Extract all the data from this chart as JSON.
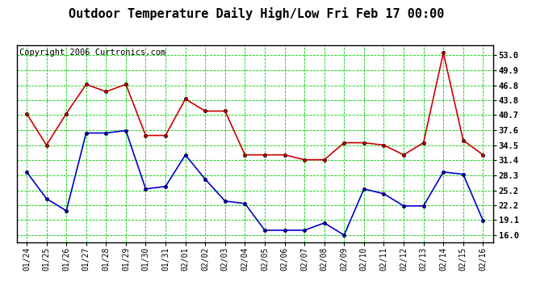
{
  "title": "Outdoor Temperature Daily High/Low Fri Feb 17 00:00",
  "copyright": "Copyright 2006 Curtronics.com",
  "x_labels": [
    "01/24",
    "01/25",
    "01/26",
    "01/27",
    "01/28",
    "01/29",
    "01/30",
    "01/31",
    "02/01",
    "02/02",
    "02/03",
    "02/04",
    "02/05",
    "02/06",
    "02/07",
    "02/08",
    "02/09",
    "02/10",
    "02/11",
    "02/12",
    "02/13",
    "02/14",
    "02/15",
    "02/16"
  ],
  "high_temps": [
    41.0,
    34.5,
    41.0,
    47.0,
    45.5,
    47.0,
    36.5,
    36.5,
    44.0,
    41.5,
    41.5,
    32.5,
    32.5,
    32.5,
    31.5,
    31.5,
    35.0,
    35.0,
    34.5,
    32.5,
    35.0,
    53.5,
    35.5,
    32.5
  ],
  "low_temps": [
    29.0,
    23.5,
    21.0,
    37.0,
    37.0,
    37.5,
    25.5,
    26.0,
    32.5,
    27.5,
    23.0,
    22.5,
    17.0,
    17.0,
    17.0,
    18.5,
    16.0,
    25.5,
    24.5,
    22.0,
    22.0,
    29.0,
    28.5,
    19.0
  ],
  "high_color": "#cc0000",
  "low_color": "#0000cc",
  "marker_color": "#000000",
  "bg_color": "#ffffff",
  "grid_color": "#00cc00",
  "border_color": "#000000",
  "yticks": [
    16.0,
    19.1,
    22.2,
    25.2,
    28.3,
    31.4,
    34.5,
    37.6,
    40.7,
    43.8,
    46.8,
    49.9,
    53.0
  ],
  "ylim": [
    14.5,
    55.0
  ],
  "title_fontsize": 11,
  "copyright_fontsize": 7.5
}
